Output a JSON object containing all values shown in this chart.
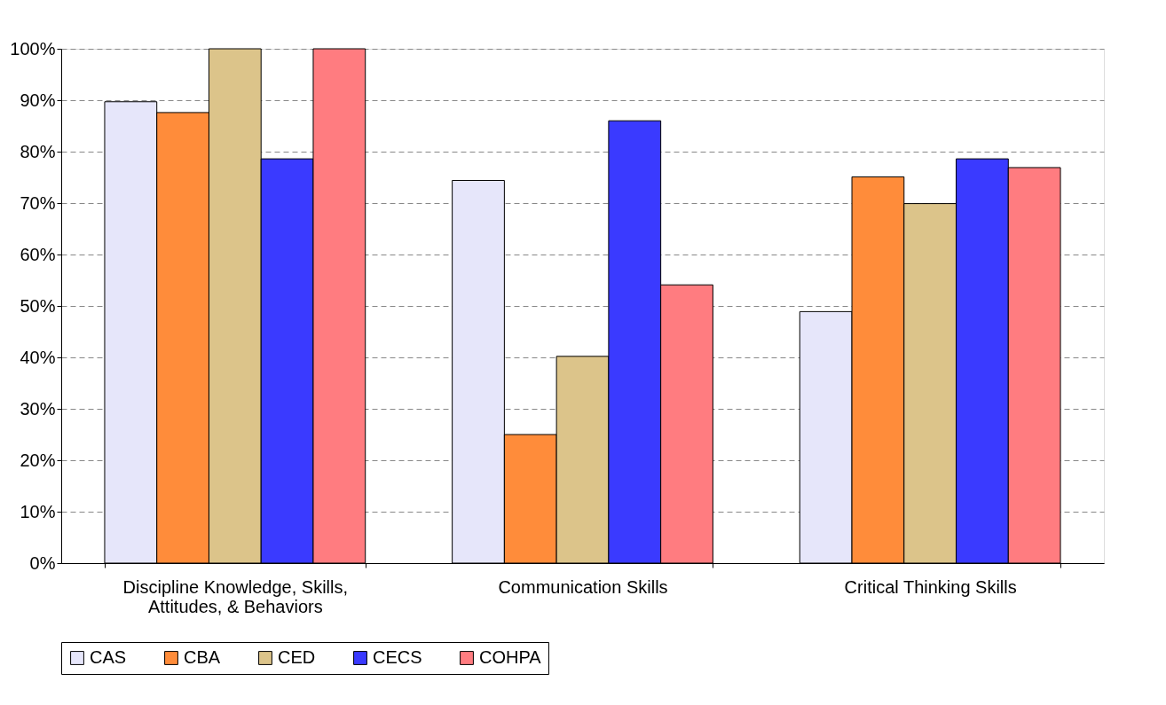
{
  "chart_data": {
    "type": "bar",
    "categories": [
      "Discipline Knowledge, Skills, Attitudes, & Behaviors",
      "Communication Skills",
      "Critical Thinking Skills"
    ],
    "series": [
      {
        "name": "CAS",
        "color": "#e6e6fa",
        "values": [
          89.7,
          74.4,
          48.9
        ]
      },
      {
        "name": "CBA",
        "color": "#ff8c3a",
        "values": [
          87.6,
          25.0,
          75.1
        ]
      },
      {
        "name": "CED",
        "color": "#dcc48a",
        "values": [
          100,
          40.2,
          69.9
        ]
      },
      {
        "name": "CECS",
        "color": "#3a3aff",
        "values": [
          78.6,
          86.0,
          78.6
        ]
      },
      {
        "name": "COHPA",
        "color": "#ff7c80",
        "values": [
          100,
          54.1,
          76.9
        ]
      }
    ],
    "ylim": [
      0,
      100
    ],
    "yticks": [
      {
        "value": 0,
        "label": "0%"
      },
      {
        "value": 10,
        "label": "10%"
      },
      {
        "value": 20,
        "label": "20%"
      },
      {
        "value": 30,
        "label": "30%"
      },
      {
        "value": 40,
        "label": "40%"
      },
      {
        "value": 50,
        "label": "50%"
      },
      {
        "value": 60,
        "label": "60%"
      },
      {
        "value": 70,
        "label": "70%"
      },
      {
        "value": 80,
        "label": "80%"
      },
      {
        "value": 90,
        "label": "90%"
      },
      {
        "value": 100,
        "label": "100%"
      }
    ],
    "grid": "y",
    "legend": "bottom"
  }
}
